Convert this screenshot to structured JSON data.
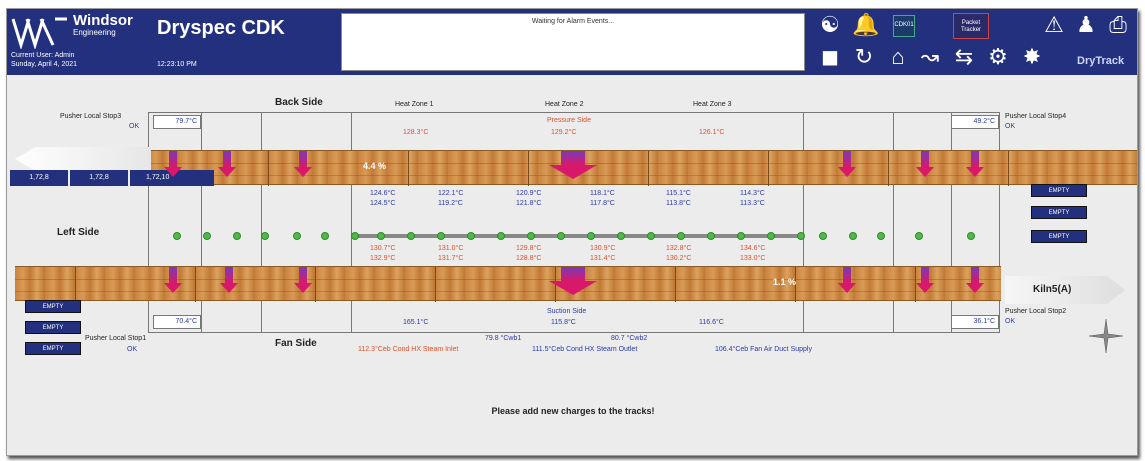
{
  "header": {
    "brand_name": "Windsor",
    "brand_sub": "Engineering",
    "app_title": "Dryspec CDK",
    "user_label": "Current User:  Admin",
    "date": "Sunday, April 4, 2021",
    "time": "12:23:10 PM",
    "alarm_message": "Waiting for Alarm Events...",
    "cdk_box": "CDK01",
    "packet_box_1": "Packet",
    "packet_box_2": "Tracker",
    "drytrack": "DryTrack"
  },
  "labels": {
    "back_side": "Back Side",
    "fan_side": "Fan Side",
    "left_side": "Left Side",
    "heat_zone_1": "Heat Zone 1",
    "heat_zone_2": "Heat Zone 2",
    "heat_zone_3": "Heat Zone 3",
    "pressure_side": "Pressure Side",
    "suction_side": "Suction Side",
    "pusher_tl": "Pusher Local Stop3",
    "pusher_tr": "Pusher Local Stop4",
    "pusher_bl": "Pusher Local Stop1",
    "pusher_br": "Pusher Local Stop2",
    "ok": "OK",
    "kiln_name": "Kiln5(A)",
    "footer_msg": "Please add new charges to the tracks!"
  },
  "temps": {
    "tl_box": "79.7°C",
    "tr_box": "49.2°C",
    "bl_box": "70.4°C",
    "br_box": "36.1°C",
    "pressure": [
      "128.3°C",
      "129.2°C",
      "126.1°C"
    ],
    "row1": [
      "124.6°C",
      "122.1°C",
      "120.9°C",
      "118.1°C",
      "115.1°C",
      "114.3°C"
    ],
    "row2": [
      "124.5°C",
      "119.2°C",
      "121.8°C",
      "117.8°C",
      "113.8°C",
      "113.3°C"
    ],
    "row3": [
      "130.7°C",
      "131.0°C",
      "129.8°C",
      "130.9°C",
      "132.8°C",
      "134.6°C"
    ],
    "row4": [
      "132.9°C",
      "131.7°C",
      "128.8°C",
      "131.4°C",
      "130.2°C",
      "133.0°C"
    ],
    "suction": [
      "165.1°C",
      "115.8°C",
      "116.6°C"
    ],
    "cwb1": "79.8 °Cwb1",
    "cwb2": "80.7 °Cwb2",
    "cond_inlet_val": "112.3",
    "cond_inlet_lbl": "°Ceb Cond HX Steam Inlet",
    "cond_outlet_val": "111.5",
    "cond_outlet_lbl": "°Ceb Cond HX Steam Outlet",
    "fan_air_val": "106.4",
    "fan_air_lbl": "°Ceb Fan Air Duct Supply"
  },
  "top_track": {
    "slots": [
      "1,72,8",
      "1,72,8",
      "1,72,10"
    ],
    "percent": "4.4 %"
  },
  "bottom_track": {
    "percent": "1.1 %"
  },
  "empty_label": "EMPTY",
  "colors": {
    "header_bg": "#23307e",
    "accent_red": "#e0502a",
    "accent_blue": "#2a3aa8",
    "dot_green": "#4fb84a"
  }
}
